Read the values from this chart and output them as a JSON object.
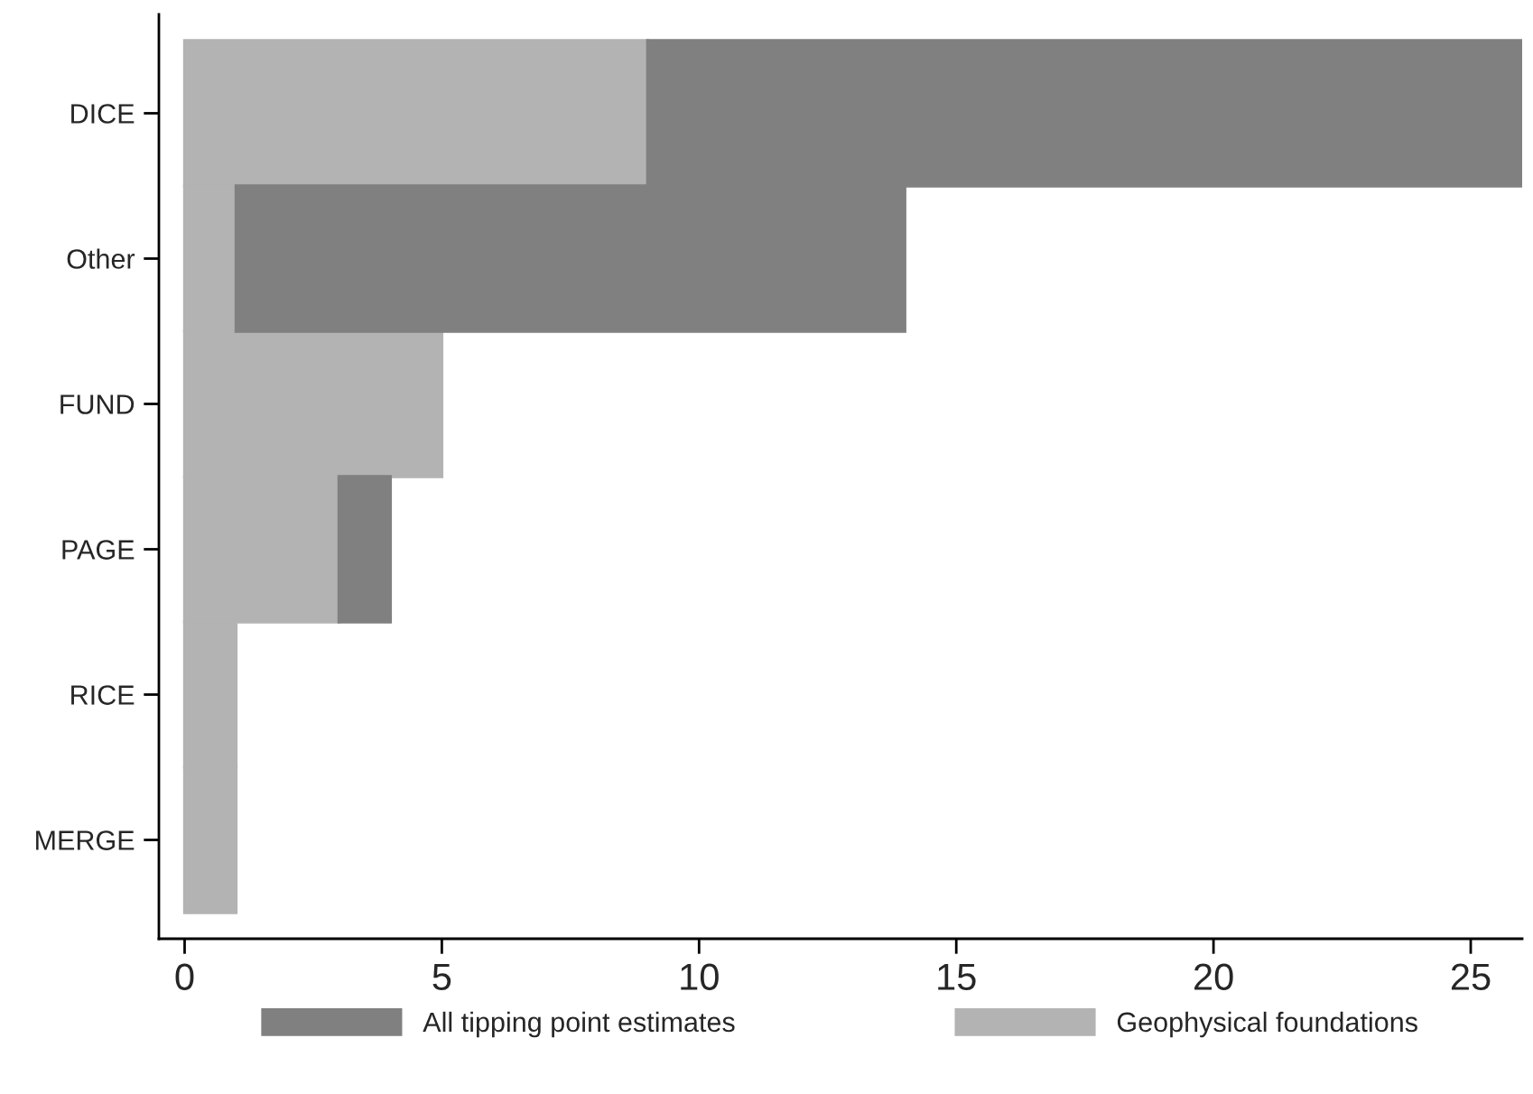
{
  "chart_data": {
    "type": "bar",
    "orientation": "horizontal",
    "stacked": true,
    "categories": [
      "DICE",
      "Other",
      "FUND",
      "PAGE",
      "RICE",
      "MERGE"
    ],
    "series": [
      {
        "name": "Geophysical foundations",
        "color": "#b3b3b3",
        "values": [
          9,
          1,
          5,
          3,
          1,
          1
        ]
      },
      {
        "name": "All tipping point estimates",
        "color": "#808080",
        "values": [
          17,
          13,
          0,
          1,
          0,
          0
        ]
      }
    ],
    "xlim": [
      -0.5,
      26
    ],
    "xticks": [
      0,
      5,
      10,
      15,
      20,
      25
    ],
    "grid": false,
    "legend": "bottom"
  }
}
